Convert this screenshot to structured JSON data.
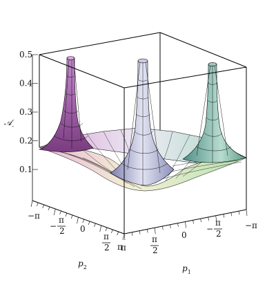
{
  "chart_data": {
    "type": "surface3d",
    "title": "",
    "zlabel": "𝒜",
    "zlabel_sub": "-",
    "xlabel": "p",
    "xlabel_sub": "1",
    "ylabel": "p",
    "ylabel_sub": "2",
    "zlim": [
      0.1,
      0.5
    ],
    "z_ticks": [
      "0.5",
      "0.4",
      "0.3",
      "0.2",
      "0.1"
    ],
    "p1_ticks": [
      "π",
      "π/2",
      "0",
      "−π/2",
      "−π"
    ],
    "p2_ticks": [
      "−π",
      "−π/2",
      "0",
      "π/2",
      "π"
    ],
    "box": true,
    "colormap": "pastel (pink / purple / green / yellow)",
    "peaks": [
      {
        "p1": "π",
        "p2": "−π",
        "value": 0.5,
        "color": "#b36fb0"
      },
      {
        "p1": "0",
        "p2": "0",
        "value": 0.5,
        "color": "#9fa0c8"
      },
      {
        "p1": "−π",
        "p2": "π",
        "value": 0.5,
        "color": "#6aa49a"
      }
    ],
    "base_level": 0.18
  }
}
